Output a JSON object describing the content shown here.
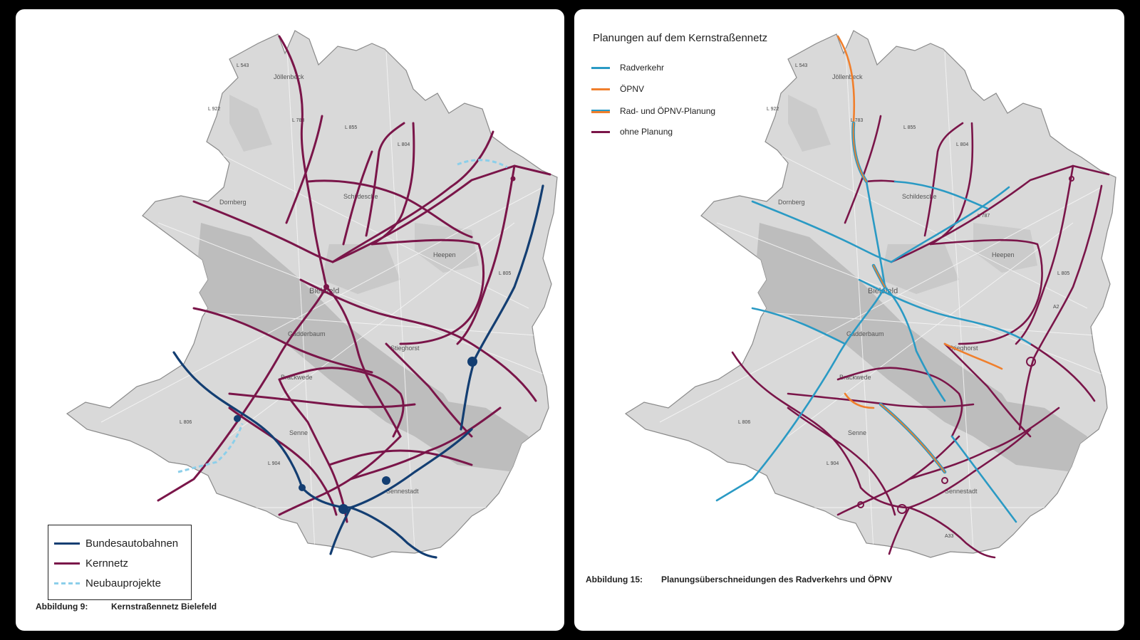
{
  "left": {
    "legend": [
      {
        "label": "Bundesautobahnen",
        "color": "#133e72",
        "style": "solid"
      },
      {
        "label": "Kernnetz",
        "color": "#7a1549",
        "style": "solid"
      },
      {
        "label": "Neubauprojekte",
        "color": "#8ccfea",
        "style": "dashed"
      }
    ],
    "caption_num": "Abbildung 9:",
    "caption_text": "Kernstraßennetz Bielefeld"
  },
  "right": {
    "legend_title": "Planungen auf dem Kernstraßennetz",
    "legend": [
      {
        "label": "Radverkehr",
        "color": "#2a9ac4",
        "style": "solid"
      },
      {
        "label": "ÖPNV",
        "color": "#f07f2c",
        "style": "solid"
      },
      {
        "label": "Rad- und ÖPNV-Planung",
        "color": "#2a9ac4",
        "color2": "#f07f2c",
        "style": "double"
      },
      {
        "label": "ohne Planung",
        "color": "#7a1549",
        "style": "solid"
      }
    ],
    "caption_num": "Abbildung 15:",
    "caption_text": "Planungsüberschneidungen des Radverkehrs und ÖPNV"
  },
  "map_labels": {
    "places": [
      "Jöllenbeck",
      "Dornberg",
      "Schildesche",
      "Heepen",
      "Bielefeld",
      "Gadderbaum",
      "Stieghorst",
      "Brackwede",
      "Senne",
      "Sennestadt"
    ],
    "roads": [
      "L 543",
      "L 783",
      "L 855",
      "L 804",
      "L 806",
      "L 904",
      "L 805",
      "A2",
      "A33",
      "L 787",
      "L 922"
    ]
  },
  "colors": {
    "autobahn": "#133e72",
    "kernnetz": "#7a1549",
    "neubau": "#8ccfea",
    "radverkehr": "#2a9ac4",
    "oepnv": "#f07f2c",
    "map_fill": "#d9d9d9",
    "map_dark": "#b9b9b9"
  }
}
